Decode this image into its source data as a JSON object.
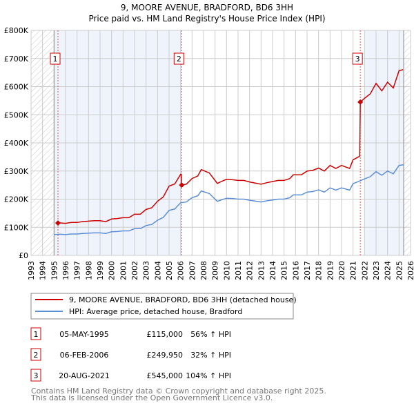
{
  "title": "9, MOORE AVENUE, BRADFORD, BD6 3HH",
  "subtitle": "Price paid vs. HM Land Registry's House Price Index (HPI)",
  "colors": {
    "property": "#cc0000",
    "hpi": "#5b8fd6",
    "shade": "#eef3fc",
    "grid": "#cccccc"
  },
  "chart_data": {
    "type": "line",
    "title": "9, MOORE AVENUE, BRADFORD, BD6 3HH",
    "subtitle": "Price paid vs. HM Land Registry's House Price Index (HPI)",
    "xlim": [
      1993,
      2026
    ],
    "ylim": [
      0,
      800000
    ],
    "grid": true,
    "x_ticks": [
      "1993",
      "1994",
      "1995",
      "1996",
      "1997",
      "1998",
      "1999",
      "2000",
      "2001",
      "2002",
      "2003",
      "2004",
      "2005",
      "2006",
      "2007",
      "2008",
      "2009",
      "2010",
      "2011",
      "2012",
      "2013",
      "2014",
      "2015",
      "2016",
      "2017",
      "2018",
      "2019",
      "2020",
      "2021",
      "2022",
      "2023",
      "2024",
      "2025",
      "2026"
    ],
    "y_ticks": [
      {
        "value": 0,
        "label": "£0"
      },
      {
        "value": 100000,
        "label": "£100K"
      },
      {
        "value": 200000,
        "label": "£200K"
      },
      {
        "value": 300000,
        "label": "£300K"
      },
      {
        "value": 400000,
        "label": "£400K"
      },
      {
        "value": 500000,
        "label": "£500K"
      },
      {
        "value": 600000,
        "label": "£600K"
      },
      {
        "value": 700000,
        "label": "£700K"
      },
      {
        "value": 800000,
        "label": "£800K"
      }
    ],
    "hatched_ranges": [
      [
        1993,
        1995
      ],
      [
        2025.4,
        2026
      ]
    ],
    "shaded_ranges": [
      [
        1995,
        2006.1
      ],
      [
        2022,
        2025.4
      ]
    ],
    "series": [
      {
        "name": "HPI: Average price, detached house, Bradford",
        "x": [
          1995,
          1995.5,
          1996,
          1996.5,
          1997,
          1997.5,
          1998,
          1998.5,
          1999,
          1999.5,
          2000,
          2000.5,
          2001,
          2001.5,
          2002,
          2002.5,
          2003,
          2003.5,
          2004,
          2004.5,
          2005,
          2005.5,
          2006,
          2006.5,
          2007,
          2007.5,
          2007.8,
          2008.5,
          2009.2,
          2009.6,
          2010,
          2010.5,
          2011,
          2011.5,
          2012,
          2012.5,
          2013,
          2013.5,
          2014,
          2014.5,
          2015,
          2015.5,
          2015.8,
          2016.5,
          2017,
          2017.5,
          2018,
          2018.5,
          2019,
          2019.5,
          2020,
          2020.7,
          2021,
          2021.6,
          2022,
          2022.5,
          2023,
          2023.5,
          2024,
          2024.5,
          2025,
          2025.4
        ],
        "y": [
          74000,
          75000,
          74000,
          76000,
          76000,
          78000,
          79000,
          80000,
          80000,
          78000,
          84000,
          85000,
          87000,
          87000,
          95000,
          95000,
          106000,
          110000,
          125000,
          135000,
          160000,
          165000,
          187000,
          190000,
          205000,
          212000,
          229000,
          220000,
          192000,
          198000,
          203000,
          202000,
          200000,
          200000,
          196000,
          193000,
          190000,
          194000,
          197000,
          200000,
          200000,
          205000,
          215000,
          215000,
          225000,
          227000,
          233000,
          225000,
          240000,
          232000,
          240000,
          232000,
          255000,
          265000,
          272000,
          280000,
          298000,
          285000,
          300000,
          290000,
          320000,
          322000
        ]
      },
      {
        "name": "9, MOORE AVENUE, BRADFORD, BD6 3HH (detached house)",
        "derived_from_hpi": true
      }
    ],
    "sales": [
      {
        "label": "1",
        "x": 1995.34,
        "price": 115000
      },
      {
        "label": "2",
        "x": 2006.1,
        "price": 249950
      },
      {
        "label": "3",
        "x": 2021.63,
        "price": 545000
      }
    ]
  },
  "legend": [
    {
      "label": "9, MOORE AVENUE, BRADFORD, BD6 3HH (detached house)",
      "color": "#cc0000"
    },
    {
      "label": "HPI: Average price, detached house, Bradford",
      "color": "#5b8fd6"
    }
  ],
  "transactions": [
    {
      "num": "1",
      "date": "05-MAY-1995",
      "price": "£115,000",
      "pct": "56%",
      "arrow": "↑",
      "ref": "HPI"
    },
    {
      "num": "2",
      "date": "06-FEB-2006",
      "price": "£249,950",
      "pct": "32%",
      "arrow": "↑",
      "ref": "HPI"
    },
    {
      "num": "3",
      "date": "20-AUG-2021",
      "price": "£545,000",
      "pct": "104%",
      "arrow": "↑",
      "ref": "HPI"
    }
  ],
  "footer": {
    "line1": "Contains HM Land Registry data © Crown copyright and database right 2025.",
    "line2": "This data is licensed under the Open Government Licence v3.0."
  }
}
